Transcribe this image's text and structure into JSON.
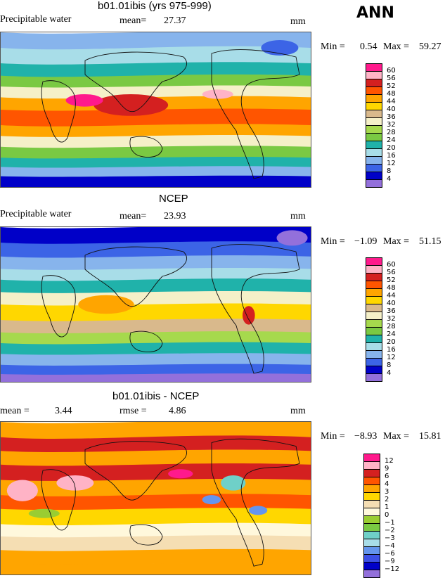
{
  "season": "ANN",
  "panels": [
    {
      "title": "b01.01ibis (yrs 975-999)",
      "variable": "Precipitable water",
      "stat1_label": "mean=",
      "stat1_value": "27.37",
      "stat2_label": "",
      "stat2_value": "",
      "units": "mm",
      "min_label": "Min =",
      "min_value": "0.54",
      "max_label": "Max =",
      "max_value": "59.27",
      "colorbar_labels": [
        "60",
        "56",
        "52",
        "48",
        "44",
        "40",
        "36",
        "32",
        "28",
        "24",
        "20",
        "16",
        "12",
        "8",
        "4"
      ],
      "colorbar_colors": [
        "#ff1a8c",
        "#ffb3c6",
        "#d42020",
        "#ff5500",
        "#ffa500",
        "#ffd700",
        "#d9b98c",
        "#f5f0c8",
        "#a6d94d",
        "#7ac943",
        "#20b2aa",
        "#a8dde8",
        "#87b4ec",
        "#3c64e6",
        "#0000c8",
        "#9370db"
      ]
    },
    {
      "title": "NCEP",
      "variable": "Precipitable water",
      "stat1_label": "mean=",
      "stat1_value": "23.93",
      "stat2_label": "",
      "stat2_value": "",
      "units": "mm",
      "min_label": "Min =",
      "min_value": "−1.09",
      "max_label": "Max =",
      "max_value": "51.15",
      "colorbar_labels": [
        "60",
        "56",
        "52",
        "48",
        "44",
        "40",
        "36",
        "32",
        "28",
        "24",
        "20",
        "16",
        "12",
        "8",
        "4"
      ],
      "colorbar_colors": [
        "#ff1a8c",
        "#ffb3c6",
        "#d42020",
        "#ff5500",
        "#ffa500",
        "#ffd700",
        "#d9b98c",
        "#f5f0c8",
        "#a6d94d",
        "#7ac943",
        "#20b2aa",
        "#a8dde8",
        "#87b4ec",
        "#3c64e6",
        "#0000c8",
        "#9370db"
      ]
    },
    {
      "title": "b01.01ibis - NCEP",
      "variable": "",
      "stat1_label": "mean =",
      "stat1_value": "3.44",
      "stat2_label": "rmse =",
      "stat2_value": "4.86",
      "units": "mm",
      "min_label": "Min =",
      "min_value": "−8.93",
      "max_label": "Max =",
      "max_value": "15.81",
      "colorbar_labels": [
        "12",
        "9",
        "6",
        "4",
        "3",
        "2",
        "1",
        "0",
        "−1",
        "−2",
        "−3",
        "−4",
        "−6",
        "−9",
        "−12"
      ],
      "colorbar_colors": [
        "#ff1a8c",
        "#ffb3c6",
        "#d42020",
        "#ff5500",
        "#ffa500",
        "#ffd700",
        "#f5deb3",
        "#fff8dc",
        "#9acd32",
        "#7ac943",
        "#6fd0c8",
        "#a8dde8",
        "#6495ed",
        "#3c50e6",
        "#0000c8",
        "#9370db"
      ]
    }
  ],
  "chart_data": [
    {
      "type": "heatmap",
      "title": "b01.01ibis (yrs 975-999)",
      "variable": "Precipitable water",
      "units": "mm",
      "mean": 27.37,
      "min": 0.54,
      "max": 59.27,
      "contour_levels": [
        4,
        8,
        12,
        16,
        20,
        24,
        28,
        32,
        36,
        40,
        44,
        48,
        52,
        56,
        60
      ]
    },
    {
      "type": "heatmap",
      "title": "NCEP",
      "variable": "Precipitable water",
      "units": "mm",
      "mean": 23.93,
      "min": -1.09,
      "max": 51.15,
      "contour_levels": [
        4,
        8,
        12,
        16,
        20,
        24,
        28,
        32,
        36,
        40,
        44,
        48,
        52,
        56,
        60
      ]
    },
    {
      "type": "heatmap",
      "title": "b01.01ibis - NCEP",
      "units": "mm",
      "mean": 3.44,
      "rmse": 4.86,
      "min": -8.93,
      "max": 15.81,
      "contour_levels": [
        -12,
        -9,
        -6,
        -4,
        -3,
        -2,
        -1,
        0,
        1,
        2,
        3,
        4,
        6,
        9,
        12
      ]
    }
  ]
}
